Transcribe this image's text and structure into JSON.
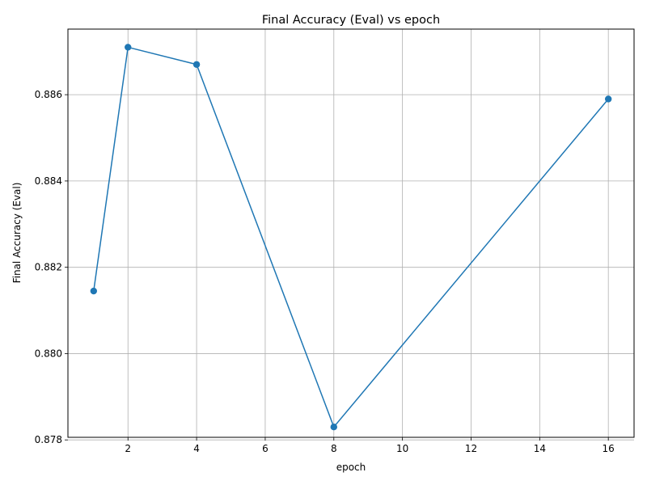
{
  "chart_data": {
    "type": "line",
    "title": "Final Accuracy (Eval) vs epoch",
    "xlabel": "epoch",
    "ylabel": "Final Accuracy (Eval)",
    "xlim": [
      0.25,
      16.75
    ],
    "ylim": [
      0.87806,
      0.88752
    ],
    "xticks": [
      2,
      4,
      6,
      8,
      10,
      12,
      14,
      16
    ],
    "yticks": [
      0.878,
      0.88,
      0.882,
      0.884,
      0.886
    ],
    "ytick_labels": [
      "0.878",
      "0.880",
      "0.882",
      "0.884",
      "0.886"
    ],
    "grid": true,
    "series": [
      {
        "color": "#1f77b4",
        "marker": "circle",
        "x": [
          1,
          2,
          4,
          8,
          16
        ],
        "y": [
          0.88145,
          0.8871,
          0.8867,
          0.8783,
          0.8859
        ]
      }
    ]
  }
}
